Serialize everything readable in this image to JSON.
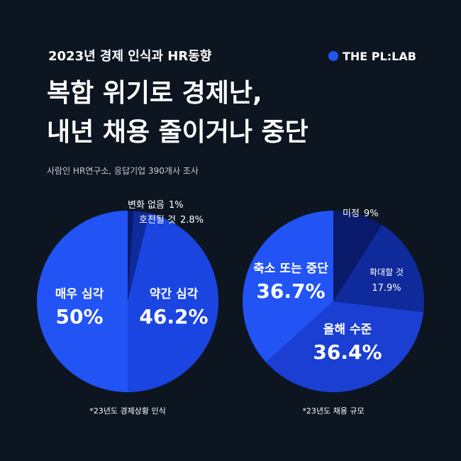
{
  "header": {
    "kicker": "2023년 경제 인식과 HR동향",
    "brand": "THE PL:LAB",
    "title": [
      "복합 위기로 경제난,",
      "내년 채용 줄이거나 중단"
    ],
    "source": "사람인 HR연구소, 응답기업 390개사 조사"
  },
  "chart_data": [
    {
      "type": "pie",
      "note": "*23년도 경제상황 인식",
      "categories": [
        "변화 없음",
        "호전될 것",
        "약간 심각",
        "매우 심각"
      ],
      "values": [
        1,
        2.8,
        46.2,
        50
      ],
      "value_labels": [
        "1%",
        "2.8%",
        "46.2%",
        "50%"
      ],
      "colors": [
        "#0a1a6a",
        "#0f2a9a",
        "#1a45e0",
        "#2153f5"
      ]
    },
    {
      "type": "pie",
      "note": "*23년도 채용 규모",
      "categories": [
        "미정",
        "확대할 것",
        "올해 수준",
        "축소 또는 중단"
      ],
      "values": [
        9,
        17.9,
        36.4,
        36.7
      ],
      "value_labels": [
        "9%",
        "17.9%",
        "36.4%",
        "36.7%"
      ],
      "colors": [
        "#0a1a6a",
        "#0f2a9a",
        "#1a3fd2",
        "#2153f5"
      ]
    }
  ]
}
